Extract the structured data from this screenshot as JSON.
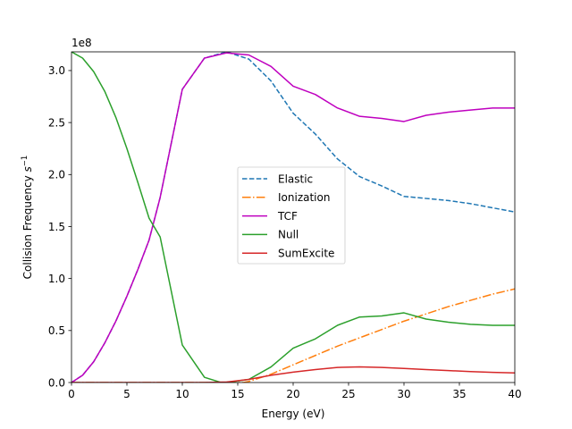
{
  "chart_data": {
    "type": "line",
    "title": "",
    "xlabel": "Energy (eV)",
    "ylabel_text": "Collision Frequency ",
    "ylabel_unit_base": "s",
    "ylabel_unit_exp": "−1",
    "y_offset_label": "1e8",
    "xlim": [
      0,
      40
    ],
    "ylim": [
      0,
      3.18
    ],
    "y_scale": 100000000.0,
    "x_ticks": [
      0,
      5,
      10,
      15,
      20,
      25,
      30,
      35,
      40
    ],
    "x_tick_labels": [
      "0",
      "5",
      "10",
      "15",
      "20",
      "25",
      "30",
      "35",
      "40"
    ],
    "y_ticks": [
      0,
      0.5,
      1.0,
      1.5,
      2.0,
      2.5,
      3.0
    ],
    "y_tick_labels": [
      "0.0",
      "0.5",
      "1.0",
      "1.5",
      "2.0",
      "2.5",
      "3.0"
    ],
    "grid": false,
    "legend_position": "center",
    "series": [
      {
        "name": "Elastic",
        "color": "#1f77b4",
        "dash": "dashed",
        "x": [
          0,
          1,
          2,
          3,
          4,
          5,
          6,
          7,
          8,
          10,
          12,
          14,
          16,
          18,
          20,
          22,
          24,
          26,
          28,
          30,
          32,
          34,
          36,
          38,
          40
        ],
        "y": [
          0.0,
          0.07,
          0.2,
          0.38,
          0.59,
          0.83,
          1.09,
          1.37,
          1.78,
          2.82,
          3.12,
          3.18,
          3.11,
          2.9,
          2.59,
          2.39,
          2.15,
          1.98,
          1.89,
          1.79,
          1.77,
          1.75,
          1.72,
          1.68,
          1.64
        ]
      },
      {
        "name": "Ionization",
        "color": "#ff7f0e",
        "dash": "dashdot",
        "x": [
          0,
          14,
          15.5,
          16,
          18,
          20,
          22,
          24,
          26,
          28,
          30,
          32,
          34,
          36,
          38,
          40
        ],
        "y": [
          0.0,
          0.0,
          0.0,
          0.01,
          0.08,
          0.17,
          0.26,
          0.35,
          0.43,
          0.51,
          0.59,
          0.66,
          0.73,
          0.79,
          0.85,
          0.9
        ]
      },
      {
        "name": "TCF",
        "color": "#bf00bf",
        "dash": "solid",
        "x": [
          0,
          1,
          2,
          3,
          4,
          5,
          6,
          7,
          8,
          10,
          12,
          14,
          16,
          18,
          20,
          22,
          24,
          26,
          28,
          30,
          32,
          34,
          36,
          38,
          40
        ],
        "y": [
          0.0,
          0.07,
          0.2,
          0.38,
          0.59,
          0.83,
          1.09,
          1.37,
          1.78,
          2.82,
          3.12,
          3.17,
          3.15,
          3.04,
          2.85,
          2.77,
          2.64,
          2.56,
          2.54,
          2.51,
          2.57,
          2.6,
          2.62,
          2.64,
          2.64
        ]
      },
      {
        "name": "Null",
        "color": "#2ca02c",
        "dash": "solid",
        "x": [
          0,
          1,
          2,
          3,
          4,
          5,
          6,
          7,
          8,
          10,
          12,
          13.5,
          14,
          16,
          18,
          20,
          22,
          24,
          26,
          28,
          30,
          32,
          34,
          36,
          38,
          40
        ],
        "y": [
          3.18,
          3.12,
          2.99,
          2.8,
          2.55,
          2.25,
          1.92,
          1.58,
          1.4,
          0.36,
          0.05,
          0.0,
          0.0,
          0.03,
          0.15,
          0.33,
          0.42,
          0.55,
          0.63,
          0.64,
          0.67,
          0.61,
          0.58,
          0.56,
          0.55,
          0.55
        ]
      },
      {
        "name": "SumExcite",
        "color": "#d62728",
        "dash": "solid",
        "x": [
          0,
          12,
          14,
          16,
          18,
          20,
          22,
          24,
          26,
          28,
          30,
          32,
          34,
          36,
          38,
          40
        ],
        "y": [
          0.0,
          0.0,
          0.005,
          0.03,
          0.07,
          0.1,
          0.125,
          0.145,
          0.15,
          0.145,
          0.135,
          0.125,
          0.115,
          0.105,
          0.098,
          0.092
        ]
      }
    ]
  }
}
